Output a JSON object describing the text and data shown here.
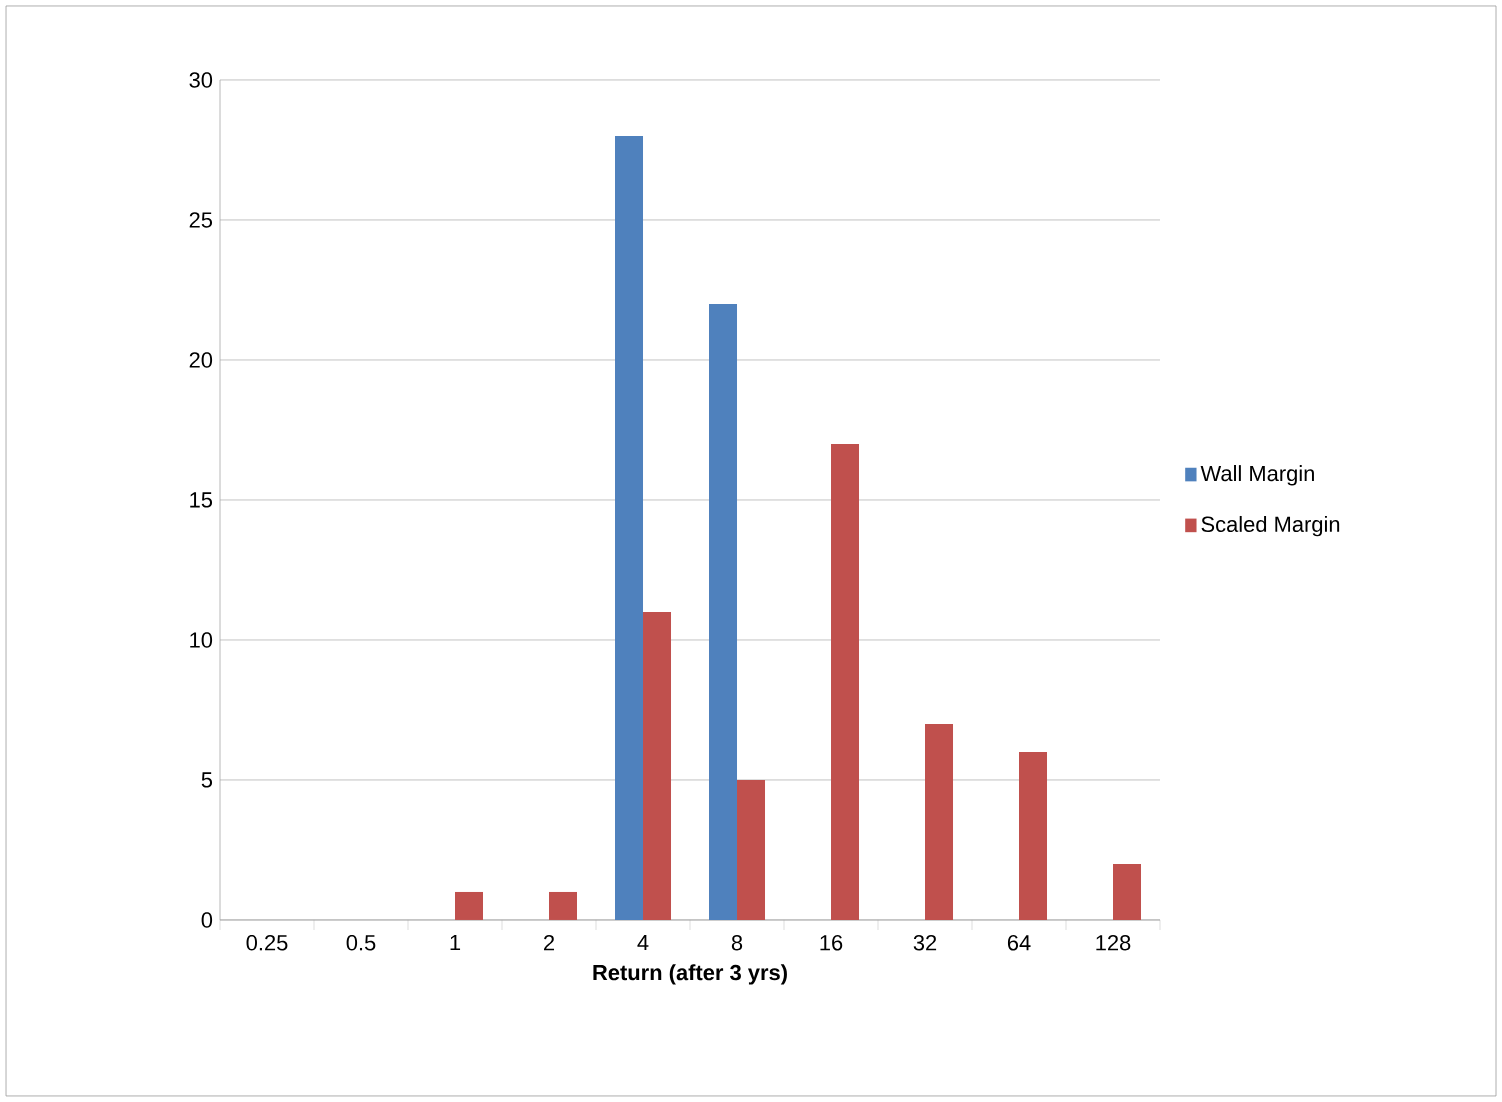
{
  "chart_data": {
    "type": "bar",
    "xlabel": "Return (after 3 yrs)",
    "categories": [
      "0.25",
      "0.5",
      "1",
      "2",
      "4",
      "8",
      "16",
      "32",
      "64",
      "128"
    ],
    "series": [
      {
        "name": "Wall Margin",
        "color": "#4f81bd",
        "values": [
          0,
          0,
          0,
          0,
          28,
          22,
          0,
          0,
          0,
          0
        ]
      },
      {
        "name": "Scaled Margin",
        "color": "#c0504d",
        "values": [
          0,
          0,
          1,
          1,
          11,
          5,
          17,
          7,
          6,
          2
        ]
      }
    ],
    "ylim": [
      0,
      30
    ],
    "yticks": [
      0,
      5,
      10,
      15,
      20,
      25,
      30
    ],
    "grid": "y",
    "legend": "right"
  }
}
